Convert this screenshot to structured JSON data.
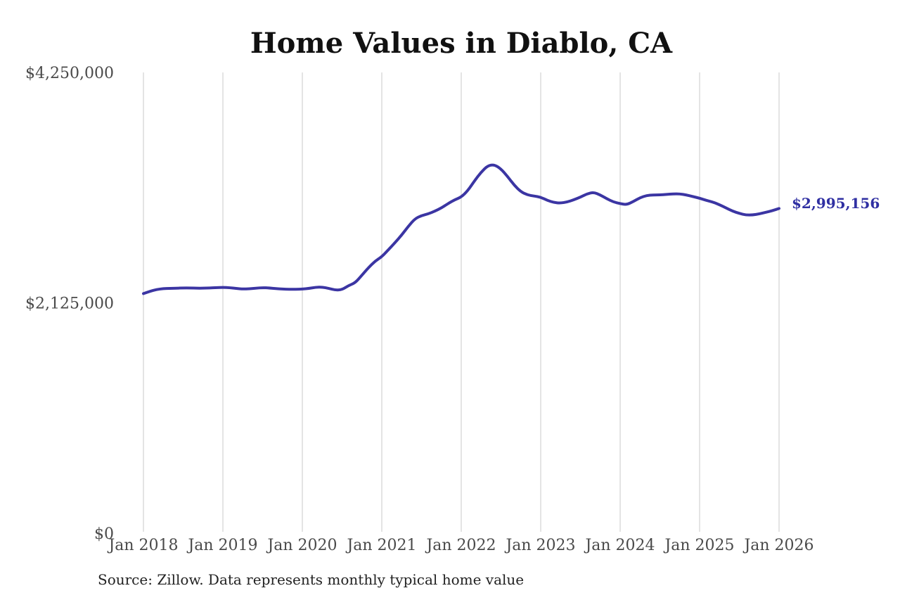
{
  "title": "Home Values in Diablo, CA",
  "source_note": "Source: Zillow. Data represents monthly typical home value",
  "end_label": "$2,995,156",
  "colors": {
    "line": "#3b35a3",
    "end_label": "#2f2fa2",
    "grid": "#c9c9c9",
    "axis_text": "#4a4a4a",
    "title_text": "#111111",
    "background": "#ffffff"
  },
  "chart_data": {
    "type": "line",
    "title": "Home Values in Diablo, CA",
    "xlabel": "",
    "ylabel": "",
    "ylim": [
      0,
      4250000
    ],
    "grid": "vertical-only",
    "legend": "none",
    "y_ticks": [
      {
        "label": "$0",
        "value": 0
      },
      {
        "label": "$2,125,000",
        "value": 2125000
      },
      {
        "label": "$4,250,000",
        "value": 4250000
      }
    ],
    "x_tick_labels": [
      "Jan 2018",
      "Jan 2019",
      "Jan 2020",
      "Jan 2021",
      "Jan 2022",
      "Jan 2023",
      "Jan 2024",
      "Jan 2025",
      "Jan 2026"
    ],
    "x_tick_every_months": 12,
    "end_annotation": "$2,995,156",
    "series": [
      {
        "name": "Monthly typical home value",
        "x_start": "2018-01",
        "x_end": "2026-01",
        "interval": "monthly",
        "values": [
          2210000,
          2232000,
          2248000,
          2256000,
          2258000,
          2260000,
          2262000,
          2262000,
          2260000,
          2260000,
          2262000,
          2265000,
          2268000,
          2265000,
          2258000,
          2252000,
          2255000,
          2260000,
          2265000,
          2262000,
          2256000,
          2252000,
          2250000,
          2250000,
          2252000,
          2258000,
          2268000,
          2270000,
          2258000,
          2242000,
          2246000,
          2285000,
          2310000,
          2380000,
          2450000,
          2510000,
          2550000,
          2615000,
          2680000,
          2750000,
          2830000,
          2900000,
          2930000,
          2945000,
          2970000,
          3000000,
          3040000,
          3075000,
          3100000,
          3160000,
          3250000,
          3330000,
          3390000,
          3400000,
          3360000,
          3290000,
          3210000,
          3150000,
          3120000,
          3110000,
          3100000,
          3070000,
          3050000,
          3045000,
          3055000,
          3075000,
          3100000,
          3130000,
          3145000,
          3120000,
          3085000,
          3055000,
          3040000,
          3030000,
          3060000,
          3095000,
          3115000,
          3120000,
          3120000,
          3125000,
          3130000,
          3130000,
          3120000,
          3105000,
          3090000,
          3070000,
          3055000,
          3030000,
          3000000,
          2970000,
          2950000,
          2935000,
          2935000,
          2945000,
          2960000,
          2975000,
          2995156
        ]
      }
    ]
  }
}
